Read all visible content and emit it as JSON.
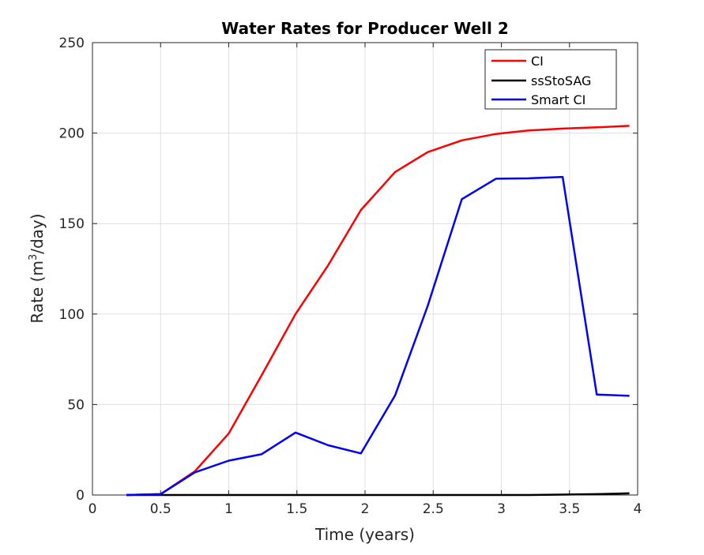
{
  "chart_data": {
    "type": "line",
    "title": "Water Rates for Producer Well 2",
    "xlabel": "Time (years)",
    "ylabel_prefix": "Rate (m",
    "ylabel_sup": "3",
    "ylabel_suffix": "/day)",
    "xlim": [
      0,
      4
    ],
    "ylim": [
      0,
      250
    ],
    "xticks": [
      0,
      0.5,
      1,
      1.5,
      2,
      2.5,
      3,
      3.5,
      4
    ],
    "xtick_labels": [
      "0",
      "0.5",
      "1",
      "1.5",
      "2",
      "2.5",
      "3",
      "3.5",
      "4"
    ],
    "yticks": [
      0,
      50,
      100,
      150,
      200,
      250
    ],
    "ytick_labels": [
      "0",
      "50",
      "100",
      "150",
      "200",
      "250"
    ],
    "grid": true,
    "legend_position": "top-right",
    "series": [
      {
        "name": "CI",
        "color": "#ff0000",
        "x": [
          0.25,
          0.5,
          0.75,
          1.0,
          1.24,
          1.49,
          1.73,
          1.97,
          2.22,
          2.46,
          2.71,
          2.96,
          3.2,
          3.45,
          3.7,
          3.94
        ],
        "y": [
          0,
          0.5,
          13,
          34,
          66,
          100,
          127,
          157.5,
          178.5,
          189.5,
          196,
          199.5,
          201.5,
          202.5,
          203.2,
          204
        ]
      },
      {
        "name": "ssStoSAG",
        "color": "#000000",
        "x": [
          0.25,
          0.5,
          0.75,
          1.0,
          1.24,
          1.49,
          1.73,
          1.97,
          2.22,
          2.46,
          2.71,
          2.96,
          3.2,
          3.45,
          3.7,
          3.94
        ],
        "y": [
          0,
          0,
          0,
          0,
          0,
          0,
          0,
          0,
          0,
          0,
          0,
          0,
          0,
          0.2,
          0.5,
          0.9
        ]
      },
      {
        "name": "Smart CI",
        "color": "#0000ff",
        "x": [
          0.25,
          0.5,
          0.75,
          1.0,
          1.24,
          1.49,
          1.73,
          1.97,
          2.22,
          2.46,
          2.71,
          2.96,
          3.2,
          3.45,
          3.7,
          3.94
        ],
        "y": [
          0,
          0.5,
          12.5,
          19,
          22.5,
          34.5,
          27.5,
          23,
          55,
          104.5,
          163.5,
          174.8,
          175,
          175.8,
          55.5,
          54.8
        ]
      }
    ]
  }
}
